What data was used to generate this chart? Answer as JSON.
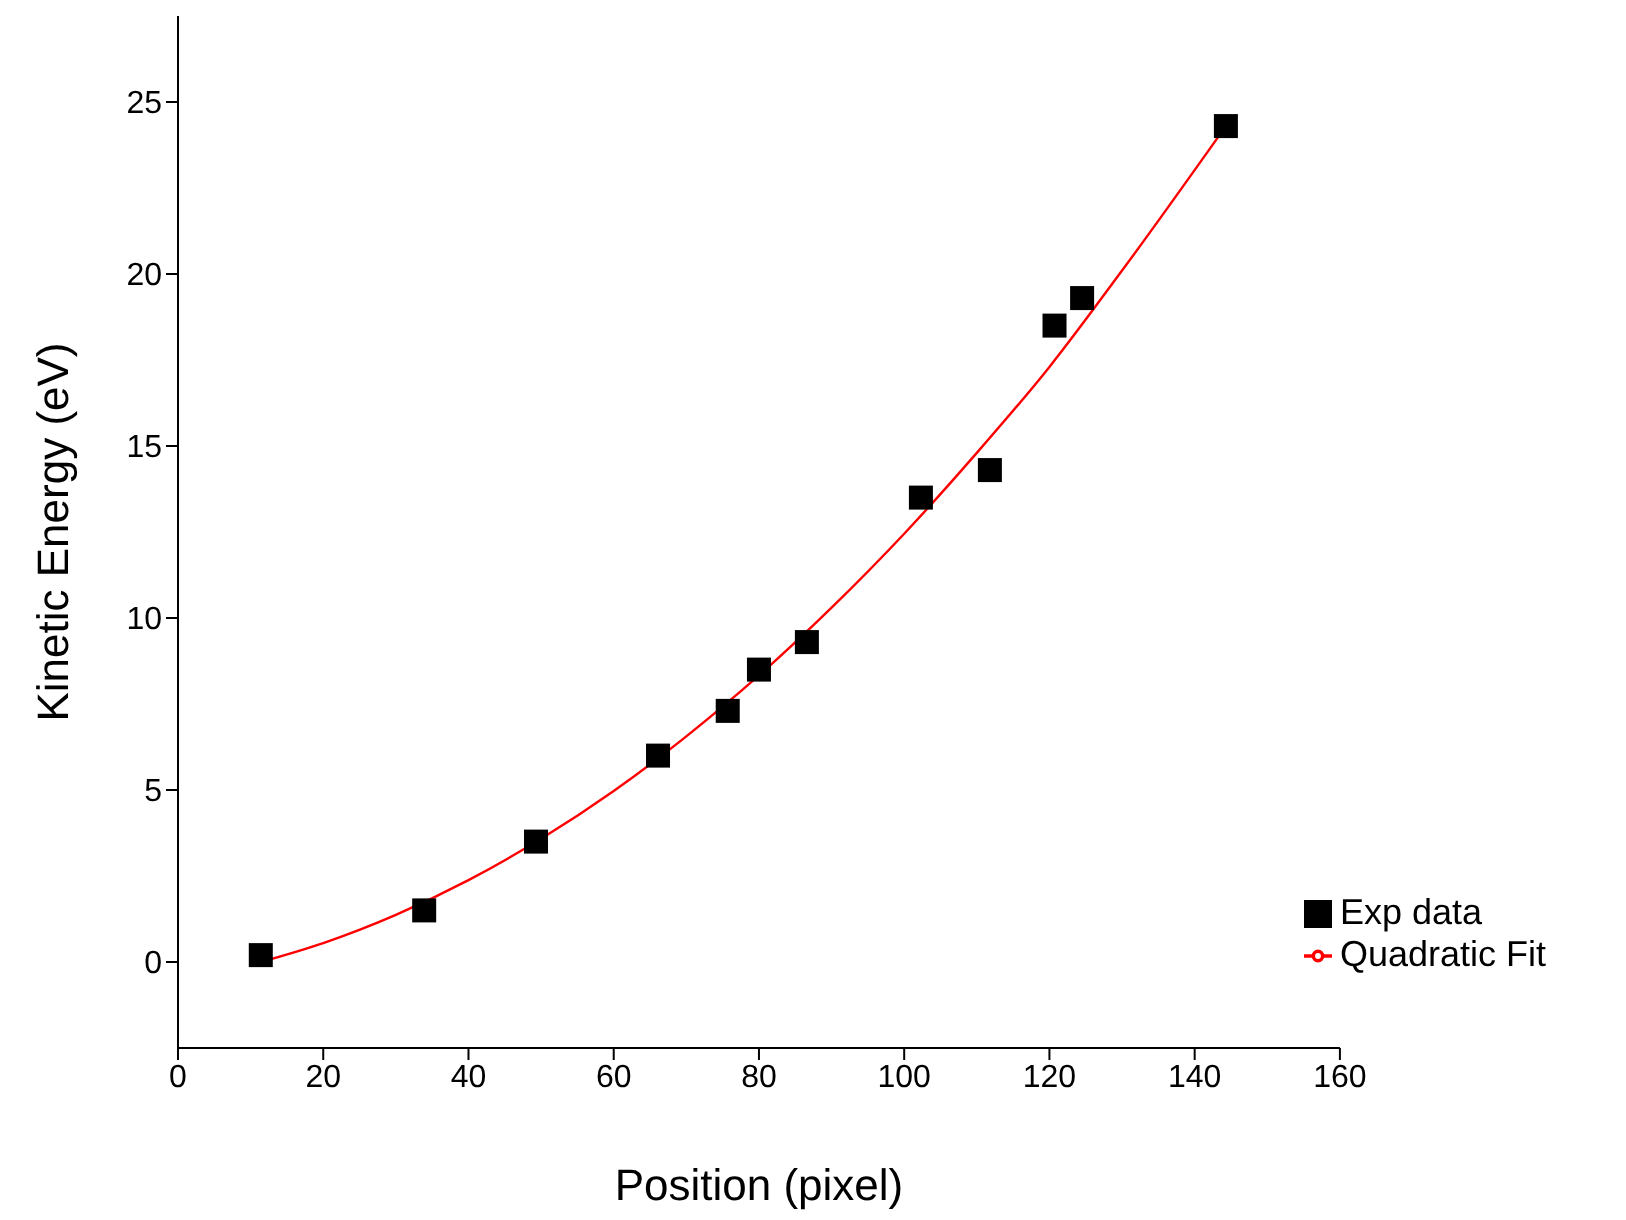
{
  "chart_data": {
    "type": "scatter",
    "xlabel": "Position (pixel)",
    "ylabel": "Kinetic Energy (eV)",
    "xlim": [
      0,
      160
    ],
    "xticks": [
      0,
      20,
      40,
      60,
      80,
      100,
      120,
      140,
      160
    ],
    "ylim": [
      -2.5,
      27.5
    ],
    "yticks": [
      0,
      5,
      10,
      15,
      20,
      25
    ],
    "grid": false,
    "legend": "bottom right",
    "marker": "square",
    "series": [
      {
        "name": "Exp data",
        "color": "#000000",
        "x": [
          11.4,
          33.9,
          49.3,
          66.1,
          75.7,
          80.0,
          86.6,
          102.3,
          111.8,
          120.7,
          124.5,
          144.3
        ],
        "values": [
          0.2,
          1.5,
          3.5,
          6.0,
          7.3,
          8.5,
          9.3,
          13.5,
          14.3,
          18.5,
          19.3,
          24.3
        ]
      },
      {
        "name": "Quadratic Fit",
        "type": "line",
        "color": "#ff0000",
        "line_style": "solid",
        "marker": "none",
        "x": [
          11.4,
          20,
          30,
          40,
          50,
          60,
          70,
          80,
          90,
          100,
          110,
          120,
          130,
          144.3
        ],
        "values": [
          0,
          0.55,
          1.37,
          2.38,
          3.58,
          4.97,
          6.56,
          8.33,
          10.3,
          12.45,
          14.8,
          17.3,
          20.1,
          24.3
        ]
      }
    ]
  }
}
